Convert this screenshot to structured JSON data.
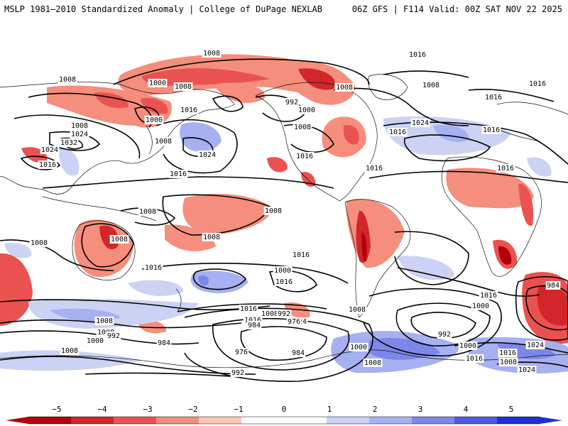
{
  "header": {
    "title_left": "MSLP 1981–2010 Standardized Anomaly | College of DuPage NEXLAB",
    "title_right": "06Z GFS | F114 Valid: 00Z SAT NOV 22 2025"
  },
  "colors": {
    "neg5": "#b2000a",
    "neg4": "#d2262a",
    "neg3": "#ea5250",
    "neg2": "#f58e7c",
    "neg1": "#fbc7b7",
    "neutral": "#ffffff",
    "pos1": "#ccd2f4",
    "pos2": "#a7b0f0",
    "pos3": "#7c87ea",
    "pos4": "#4e5ae4",
    "pos5": "#1e2fd8"
  },
  "colorbar": {
    "ticks": [
      "−5",
      "−4",
      "−3",
      "−2",
      "−1",
      "0",
      "1",
      "2",
      "3",
      "4",
      "5"
    ]
  },
  "contour_labels": [
    {
      "text": "1008"
    },
    {
      "text": "1016"
    },
    {
      "text": "1008"
    },
    {
      "text": "1000"
    },
    {
      "text": "1008"
    },
    {
      "text": "1000"
    },
    {
      "text": "1008"
    },
    {
      "text": "1016"
    },
    {
      "text": "1024"
    },
    {
      "text": "1032"
    },
    {
      "text": "1024"
    },
    {
      "text": "1016"
    },
    {
      "text": "1008"
    },
    {
      "text": "1024"
    },
    {
      "text": "1016"
    },
    {
      "text": "992"
    },
    {
      "text": "1000"
    },
    {
      "text": "1008"
    },
    {
      "text": "1016"
    },
    {
      "text": "1016"
    },
    {
      "text": "1008"
    },
    {
      "text": "1016"
    },
    {
      "text": "1016"
    },
    {
      "text": "1024"
    },
    {
      "text": "1008"
    },
    {
      "text": "1016"
    },
    {
      "text": "1016"
    },
    {
      "text": "1016"
    },
    {
      "text": "1016"
    },
    {
      "text": "1008"
    },
    {
      "text": "1008"
    },
    {
      "text": "1008"
    },
    {
      "text": "1008"
    },
    {
      "text": "1008"
    },
    {
      "text": "1016"
    },
    {
      "text": "1016"
    },
    {
      "text": "1008"
    },
    {
      "text": "1016"
    },
    {
      "text": "1016"
    },
    {
      "text": "1008"
    },
    {
      "text": "1016"
    },
    {
      "text": "1024"
    },
    {
      "text": "1000"
    },
    {
      "text": "992"
    },
    {
      "text": "984"
    },
    {
      "text": "976"
    },
    {
      "text": "1008"
    },
    {
      "text": "1008"
    },
    {
      "text": "1000"
    },
    {
      "text": "992"
    },
    {
      "text": "984"
    },
    {
      "text": "976"
    },
    {
      "text": "984"
    },
    {
      "text": "1000"
    },
    {
      "text": "992"
    },
    {
      "text": "1008"
    },
    {
      "text": "1016"
    },
    {
      "text": "1000"
    },
    {
      "text": "992"
    },
    {
      "text": "1000"
    },
    {
      "text": "1016"
    },
    {
      "text": "1024"
    },
    {
      "text": "1008"
    },
    {
      "text": "1016"
    },
    {
      "text": "1024"
    },
    {
      "text": "984"
    },
    {
      "text": "1008"
    }
  ]
}
